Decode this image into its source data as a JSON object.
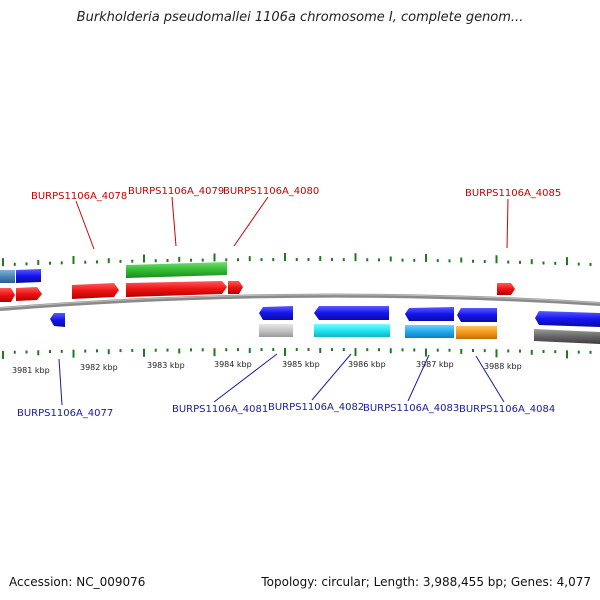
{
  "title": "Burkholderia pseudomallei 1106a chromosome I, complete genom...",
  "footer": {
    "accession": "Accession: NC_009076",
    "summary": "Topology: circular; Length: 3,988,455 bp; Genes: 4,077"
  },
  "colors": {
    "forward_label": "#cc0000",
    "reverse_label": "#1a1aa6",
    "tick": "#1f7a1f",
    "backbone": "#7a7a7a"
  },
  "kbp_ticks": [
    {
      "label": "3981 kbp"
    },
    {
      "label": "3982 kbp"
    },
    {
      "label": "3983 kbp"
    },
    {
      "label": "3984 kbp"
    },
    {
      "label": "3985 kbp"
    },
    {
      "label": "3986 kbp"
    },
    {
      "label": "3987 kbp"
    },
    {
      "label": "3988 kbp"
    }
  ],
  "gene_labels": [
    {
      "id": "BURPS1106A_4078",
      "strand": "forward"
    },
    {
      "id": "BURPS1106A_4079",
      "strand": "forward"
    },
    {
      "id": "BURPS1106A_4080",
      "strand": "forward"
    },
    {
      "id": "BURPS1106A_4085",
      "strand": "forward"
    },
    {
      "id": "BURPS1106A_4077",
      "strand": "reverse"
    },
    {
      "id": "BURPS1106A_4081",
      "strand": "reverse"
    },
    {
      "id": "BURPS1106A_4082",
      "strand": "reverse"
    },
    {
      "id": "BURPS1106A_4083",
      "strand": "reverse"
    },
    {
      "id": "BURPS1106A_4084",
      "strand": "reverse"
    }
  ]
}
